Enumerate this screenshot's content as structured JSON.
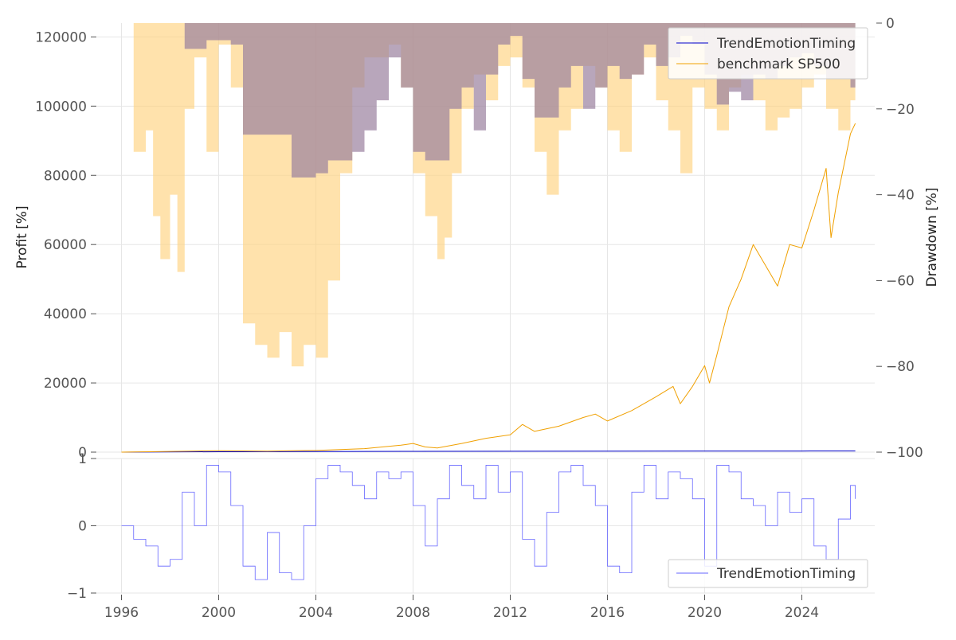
{
  "chart_data": [
    {
      "type": "line",
      "panel": "top",
      "ylabel": "Profit [%]",
      "ylim": [
        0,
        124000
      ],
      "yticks": [
        0,
        20000,
        40000,
        60000,
        80000,
        100000,
        120000
      ],
      "ytick_labels": [
        "0",
        "20000",
        "40000",
        "60000",
        "80000",
        "100000",
        "120000"
      ],
      "xlim": [
        1995.0,
        2027.0
      ],
      "grid": true,
      "legend_position": "top-right",
      "series": [
        {
          "name": "TrendEmotionTiming",
          "color": "#0000cc",
          "x": [
            1996.0,
            2000.0,
            2004.0,
            2008.0,
            2012.0,
            2016.0,
            2020.0,
            2024.0,
            2026.2
          ],
          "y": [
            0,
            120,
            180,
            230,
            260,
            290,
            310,
            330,
            340
          ]
        },
        {
          "name": "benchmark SP500",
          "color": "#f0a000",
          "x": [
            1996.0,
            1998.0,
            2000.0,
            2002.0,
            2004.0,
            2006.0,
            2007.5,
            2008.0,
            2008.5,
            2009.0,
            2010.0,
            2011.0,
            2012.0,
            2012.5,
            2013.0,
            2014.0,
            2015.0,
            2015.5,
            2016.0,
            2017.0,
            2018.0,
            2018.7,
            2019.0,
            2019.5,
            2020.0,
            2020.2,
            2020.5,
            2021.0,
            2021.5,
            2022.0,
            2022.5,
            2023.0,
            2023.5,
            2024.0,
            2024.5,
            2025.0,
            2025.2,
            2025.5,
            2026.0,
            2026.2
          ],
          "y": [
            0,
            200,
            400,
            300,
            500,
            1000,
            2000,
            2500,
            1500,
            1200,
            2500,
            4000,
            5000,
            8000,
            6000,
            7500,
            10000,
            11000,
            9000,
            12000,
            16000,
            19000,
            14000,
            19000,
            25000,
            20000,
            28000,
            42000,
            50000,
            60000,
            54000,
            48000,
            60000,
            59000,
            70000,
            82000,
            62000,
            75000,
            92000,
            95000
          ]
        }
      ]
    },
    {
      "type": "area",
      "panel": "top",
      "axis": "right",
      "ylabel": "Drawdown [%]",
      "ylim": [
        -100,
        0
      ],
      "yticks": [
        0,
        -20,
        -40,
        -60,
        -80,
        -100
      ],
      "ytick_labels": [
        "0",
        "−20",
        "−40",
        "−60",
        "−80",
        "−100"
      ],
      "series": [
        {
          "name": "benchmark SP500 drawdown",
          "color": "#ffd27f",
          "x": [
            1996.0,
            1996.5,
            1997.0,
            1997.3,
            1997.6,
            1998.0,
            1998.3,
            1998.6,
            1999.0,
            1999.5,
            2000.0,
            2000.5,
            2001.0,
            2001.5,
            2002.0,
            2002.5,
            2003.0,
            2003.5,
            2004.0,
            2004.5,
            2005.0,
            2005.5,
            2006.0,
            2007.0,
            2007.5,
            2008.0,
            2008.5,
            2009.0,
            2009.3,
            2009.6,
            2010.0,
            2010.5,
            2011.0,
            2011.5,
            2012.0,
            2012.5,
            2013.0,
            2013.5,
            2014.0,
            2014.5,
            2015.0,
            2015.5,
            2016.0,
            2016.5,
            2017.0,
            2017.5,
            2018.0,
            2018.5,
            2019.0,
            2019.5,
            2020.0,
            2020.5,
            2021.0,
            2021.5,
            2022.0,
            2022.5,
            2023.0,
            2023.5,
            2024.0,
            2024.5,
            2025.0,
            2025.5,
            2026.0,
            2026.2
          ],
          "y": [
            0,
            -30,
            -25,
            -45,
            -55,
            -40,
            -58,
            -20,
            -8,
            -30,
            -5,
            -15,
            -70,
            -75,
            -78,
            -72,
            -80,
            -75,
            -78,
            -60,
            -35,
            -15,
            -8,
            -5,
            -15,
            -35,
            -45,
            -55,
            -50,
            -35,
            -20,
            -12,
            -18,
            -10,
            -8,
            -15,
            -30,
            -40,
            -25,
            -20,
            -10,
            -15,
            -25,
            -30,
            -12,
            -8,
            -18,
            -25,
            -35,
            -15,
            -20,
            -25,
            -15,
            -12,
            -18,
            -25,
            -22,
            -20,
            -15,
            -12,
            -20,
            -25,
            -18,
            -20
          ]
        },
        {
          "name": "TrendEmotionTiming drawdown",
          "color": "#aaaaff",
          "x": [
            1996.0,
            1998.5,
            1998.6,
            1999.0,
            1999.5,
            2000.5,
            2001.0,
            2002.0,
            2003.0,
            2003.5,
            2004.0,
            2004.5,
            2005.0,
            2005.5,
            2006.0,
            2006.5,
            2007.0,
            2007.5,
            2008.0,
            2008.5,
            2009.0,
            2009.5,
            2010.0,
            2010.5,
            2011.0,
            2011.5,
            2012.0,
            2012.5,
            2013.0,
            2013.5,
            2014.0,
            2014.5,
            2015.0,
            2015.5,
            2016.0,
            2016.5,
            2017.0,
            2017.5,
            2018.0,
            2018.5,
            2019.0,
            2019.5,
            2020.0,
            2020.5,
            2021.0,
            2021.5,
            2022.0,
            2022.5,
            2023.0,
            2023.5,
            2024.0,
            2024.5,
            2025.0,
            2025.5,
            2026.0,
            2026.2
          ],
          "y": [
            0,
            0,
            -6,
            -6,
            -4,
            -5,
            -26,
            -26,
            -36,
            -36,
            -35,
            -32,
            -32,
            -30,
            -25,
            -18,
            -8,
            -15,
            -30,
            -32,
            -32,
            -20,
            -15,
            -25,
            -12,
            -5,
            -3,
            -13,
            -22,
            -22,
            -15,
            -10,
            -20,
            -15,
            -10,
            -13,
            -12,
            -5,
            -10,
            -8,
            -3,
            -5,
            -12,
            -19,
            -16,
            -18,
            -12,
            -13,
            -10,
            -8,
            -7,
            -10,
            -13,
            -13,
            -15,
            -19
          ]
        }
      ]
    },
    {
      "type": "line",
      "panel": "bottom",
      "ylim": [
        -1,
        1
      ],
      "yticks": [
        1,
        0,
        -1
      ],
      "ytick_labels": [
        "1",
        "0",
        "−1"
      ],
      "xlim": [
        1995.0,
        2027.0
      ],
      "xticks": [
        1996,
        2000,
        2004,
        2008,
        2012,
        2016,
        2020,
        2024
      ],
      "xtick_labels": [
        "1996",
        "2000",
        "2004",
        "2008",
        "2012",
        "2016",
        "2020",
        "2024"
      ],
      "grid": true,
      "legend_position": "bottom-right",
      "series": [
        {
          "name": "TrendEmotionTiming",
          "color": "#6666ff",
          "x": [
            1996.0,
            1996.5,
            1997.0,
            1997.5,
            1998.0,
            1998.5,
            1999.0,
            1999.5,
            2000.0,
            2000.5,
            2001.0,
            2001.5,
            2002.0,
            2002.5,
            2003.0,
            2003.5,
            2004.0,
            2004.5,
            2005.0,
            2005.5,
            2006.0,
            2006.5,
            2007.0,
            2007.5,
            2008.0,
            2008.5,
            2009.0,
            2009.5,
            2010.0,
            2010.5,
            2011.0,
            2011.5,
            2012.0,
            2012.5,
            2013.0,
            2013.5,
            2014.0,
            2014.5,
            2015.0,
            2015.5,
            2016.0,
            2016.5,
            2017.0,
            2017.5,
            2018.0,
            2018.5,
            2019.0,
            2019.5,
            2020.0,
            2020.5,
            2021.0,
            2021.5,
            2022.0,
            2022.5,
            2023.0,
            2023.5,
            2024.0,
            2024.5,
            2025.0,
            2025.5,
            2026.0,
            2026.2
          ],
          "y": [
            0,
            -0.2,
            -0.3,
            -0.6,
            -0.5,
            0.5,
            0.0,
            0.9,
            0.8,
            0.3,
            -0.6,
            -0.8,
            -0.1,
            -0.7,
            -0.8,
            0.0,
            0.7,
            0.9,
            0.8,
            0.6,
            0.4,
            0.8,
            0.7,
            0.8,
            0.3,
            -0.3,
            0.4,
            0.9,
            0.6,
            0.4,
            0.9,
            0.5,
            0.8,
            -0.2,
            -0.6,
            0.2,
            0.8,
            0.9,
            0.6,
            0.3,
            -0.6,
            -0.7,
            0.5,
            0.9,
            0.4,
            0.8,
            0.7,
            0.4,
            -0.6,
            0.9,
            0.8,
            0.4,
            0.3,
            0.0,
            0.5,
            0.2,
            0.4,
            -0.3,
            -0.5,
            0.1,
            0.6,
            0.4
          ]
        }
      ]
    }
  ]
}
